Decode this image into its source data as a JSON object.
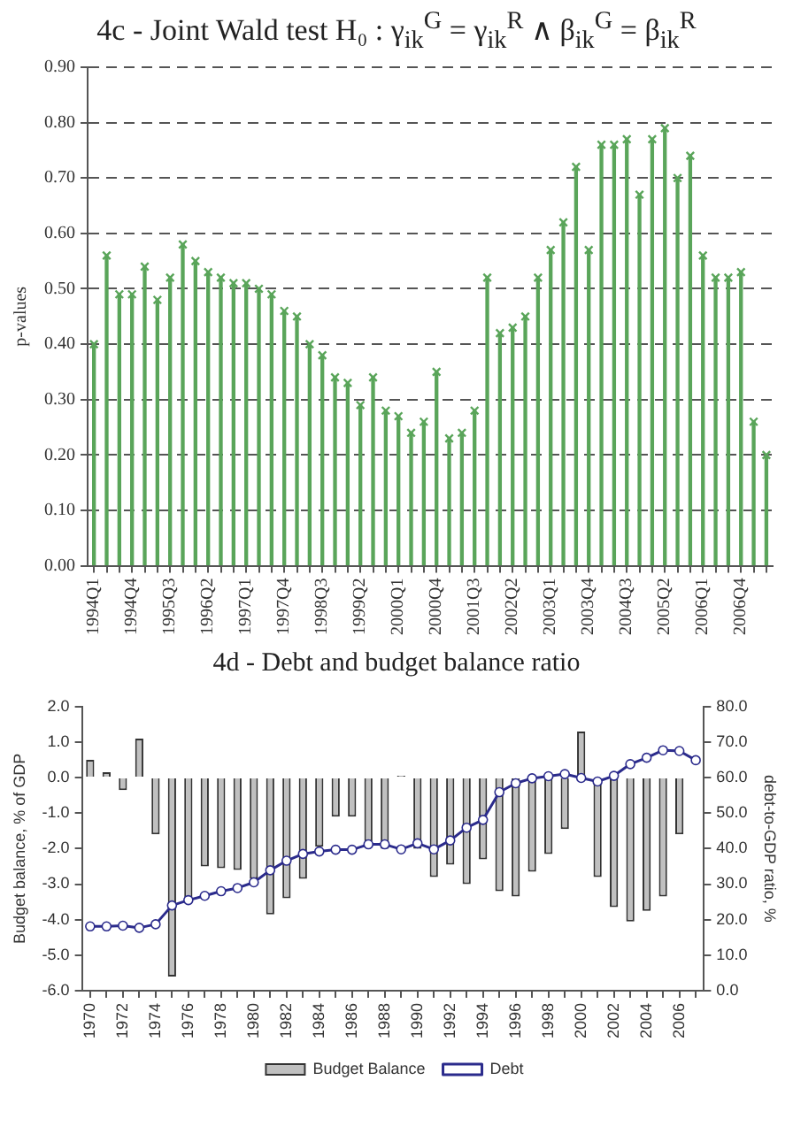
{
  "chart_data": [
    {
      "type": "lollipop",
      "title": "4c - Joint Wald test H₀ : γ$_{ik}$$^{G}$ = γ$_{ik}$$^{R}$ ∧ β$_{ik}$$^{G}$ = β$_{ik}$$^{R}$",
      "ylabel": "p-values",
      "categories": [
        "1994Q1",
        null,
        null,
        "1994Q4",
        null,
        null,
        "1995Q3",
        null,
        null,
        "1996Q2",
        null,
        null,
        "1997Q1",
        null,
        null,
        "1997Q4",
        null,
        null,
        "1998Q3",
        null,
        null,
        "1999Q2",
        null,
        null,
        "2000Q1",
        null,
        null,
        "2000Q4",
        null,
        null,
        "2001Q3",
        null,
        null,
        "2002Q2",
        null,
        null,
        "2003Q1",
        null,
        null,
        "2003Q4",
        null,
        null,
        "2004Q3",
        null,
        null,
        "2005Q2",
        null,
        null,
        "2006Q1",
        null,
        null,
        "2006Q4",
        null,
        null
      ],
      "values": [
        0.4,
        0.56,
        0.49,
        0.49,
        0.54,
        0.48,
        0.52,
        0.58,
        0.55,
        0.53,
        0.52,
        0.51,
        0.51,
        0.5,
        0.49,
        0.46,
        0.45,
        0.4,
        0.38,
        0.34,
        0.33,
        0.29,
        0.34,
        0.28,
        0.27,
        0.24,
        0.26,
        0.35,
        0.23,
        0.24,
        0.28,
        0.52,
        0.42,
        0.43,
        0.45,
        0.52,
        0.57,
        0.62,
        0.72,
        0.57,
        0.76,
        0.76,
        0.77,
        0.67,
        0.77,
        0.79,
        0.7,
        0.74,
        0.56,
        0.52,
        0.52,
        0.53,
        0.26,
        0.2
      ],
      "color": "#5aa55a",
      "marker": "cross",
      "grid": "y",
      "ylim": [
        0,
        0.9
      ],
      "yticks": [
        {
          "value": 0,
          "label": "0.00"
        },
        {
          "value": 0.1,
          "label": "0.10"
        },
        {
          "value": 0.2,
          "label": "0.20"
        },
        {
          "value": 0.3,
          "label": "0.30"
        },
        {
          "value": 0.4,
          "label": "0.40"
        },
        {
          "value": 0.5,
          "label": "0.50"
        },
        {
          "value": 0.6,
          "label": "0.60"
        },
        {
          "value": 0.7,
          "label": "0.70"
        },
        {
          "value": 0.8,
          "label": "0.80"
        },
        {
          "value": 0.9,
          "label": "0.90"
        }
      ]
    },
    {
      "type": "bar",
      "title": "4d - Debt and budget balance ratio",
      "ylabel": "Budget balance, % of GDP",
      "y2label": "debt-to-GDP ratio, %",
      "categories": [
        "1970",
        null,
        "1972",
        null,
        "1974",
        null,
        "1976",
        null,
        "1978",
        null,
        "1980",
        null,
        "1982",
        null,
        "1984",
        null,
        "1986",
        null,
        "1988",
        null,
        "1990",
        null,
        "1992",
        null,
        "1994",
        null,
        "1996",
        null,
        "1998",
        null,
        "2000",
        null,
        "2002",
        null,
        "2004",
        null,
        "2006",
        null
      ],
      "series": [
        {
          "name": "Budget Balance",
          "color": "#c0c0c0",
          "values": [
            0.5,
            0.15,
            -0.35,
            1.1,
            -1.6,
            -5.6,
            -3.4,
            -2.5,
            -2.55,
            -2.6,
            -2.85,
            -3.85,
            -3.4,
            -2.85,
            -1.95,
            -1.1,
            -1.1,
            -1.8,
            -2.0,
            0.05,
            -2.0,
            -2.8,
            -2.45,
            -3.0,
            -2.3,
            -3.2,
            -3.35,
            -2.65,
            -2.15,
            -1.45,
            1.3,
            -2.8,
            -3.65,
            -4.05,
            -3.75,
            -3.35,
            -1.6,
            null
          ]
        },
        {
          "name": "Debt",
          "type": "line",
          "axis": "y2",
          "color": "#2b2b8c",
          "values": [
            18.1,
            18.1,
            18.3,
            17.7,
            18.7,
            24.0,
            25.5,
            26.7,
            28.0,
            28.9,
            30.5,
            33.9,
            36.6,
            38.5,
            39.2,
            39.7,
            39.7,
            41.2,
            41.2,
            39.8,
            41.5,
            39.8,
            42.3,
            45.9,
            48.1,
            55.9,
            58.4,
            59.8,
            60.4,
            61.0,
            59.9,
            58.9,
            60.5,
            63.8,
            65.6,
            67.7,
            67.5,
            64.9
          ]
        }
      ],
      "marker": "circle",
      "legend": "bottom",
      "ylim": [
        -6,
        2
      ],
      "yticks": [
        {
          "value": -6,
          "label": "-6.0"
        },
        {
          "value": -5,
          "label": "-5.0"
        },
        {
          "value": -4,
          "label": "-4.0"
        },
        {
          "value": -3,
          "label": "-3.0"
        },
        {
          "value": -2,
          "label": "-2.0"
        },
        {
          "value": -1,
          "label": "-1.0"
        },
        {
          "value": 0,
          "label": "0.0"
        },
        {
          "value": 1,
          "label": "1.0"
        },
        {
          "value": 2,
          "label": "2.0"
        }
      ],
      "y2lim": [
        0,
        80
      ],
      "y2ticks": [
        {
          "value": 0,
          "label": "0.0"
        },
        {
          "value": 10,
          "label": "10.0"
        },
        {
          "value": 20,
          "label": "20.0"
        },
        {
          "value": 30,
          "label": "30.0"
        },
        {
          "value": 40,
          "label": "40.0"
        },
        {
          "value": 50,
          "label": "50.0"
        },
        {
          "value": 60,
          "label": "60.0"
        },
        {
          "value": 70,
          "label": "70.0"
        },
        {
          "value": 80,
          "label": "80.0"
        }
      ]
    }
  ]
}
